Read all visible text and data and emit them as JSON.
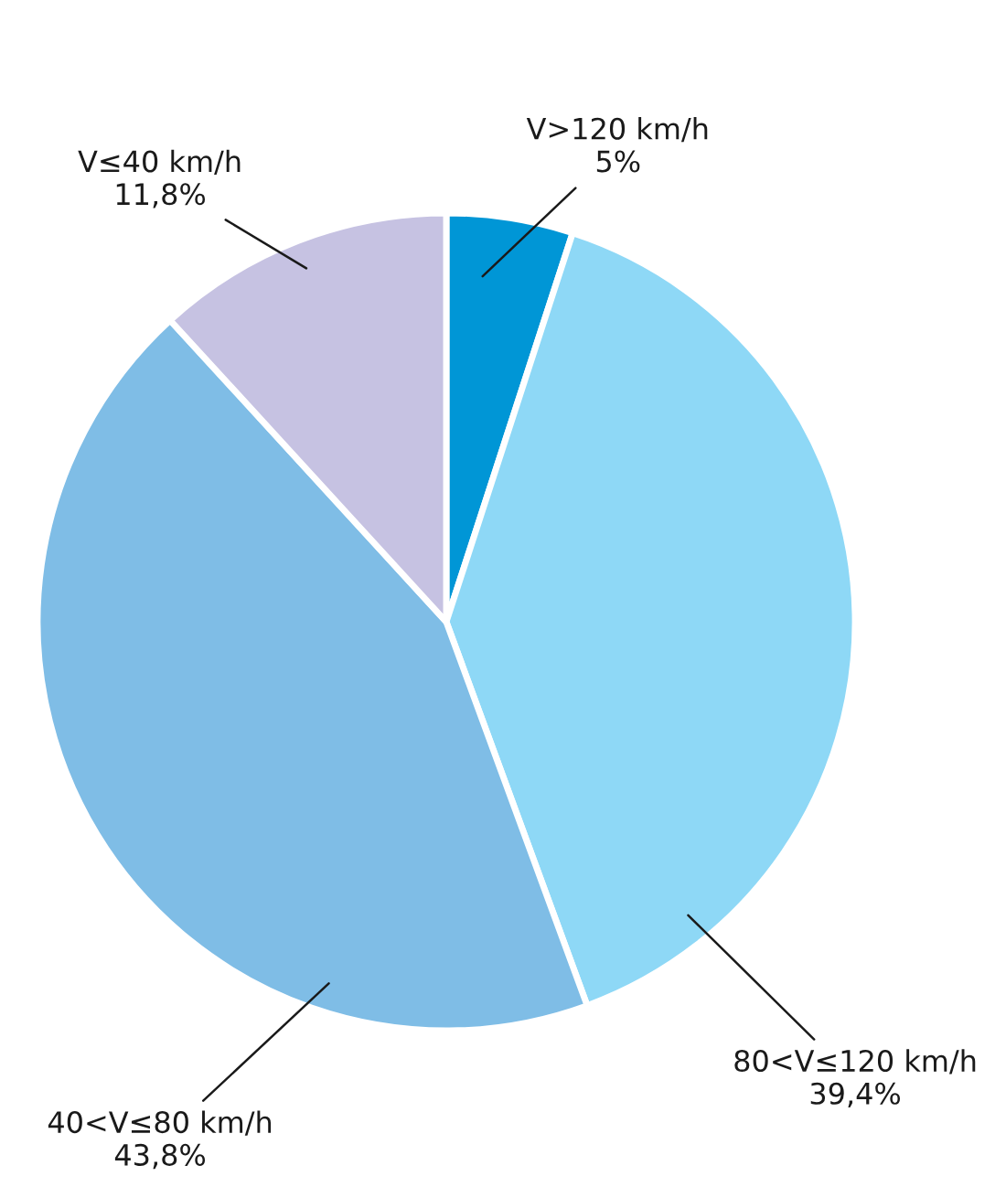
{
  "chart_data": {
    "type": "pie",
    "categories": [
      "V>120 km/h",
      "80<V≤120 km/h",
      "40<V≤80 km/h",
      "V≤40 km/h"
    ],
    "values": [
      5,
      39.4,
      43.8,
      11.8
    ],
    "value_labels": [
      "5%",
      "39,4%",
      "43,8%",
      "11,8%"
    ],
    "colors": [
      "#0096d6",
      "#8ed8f6",
      "#7fbde6",
      "#c6c2e2"
    ],
    "legend": false
  }
}
